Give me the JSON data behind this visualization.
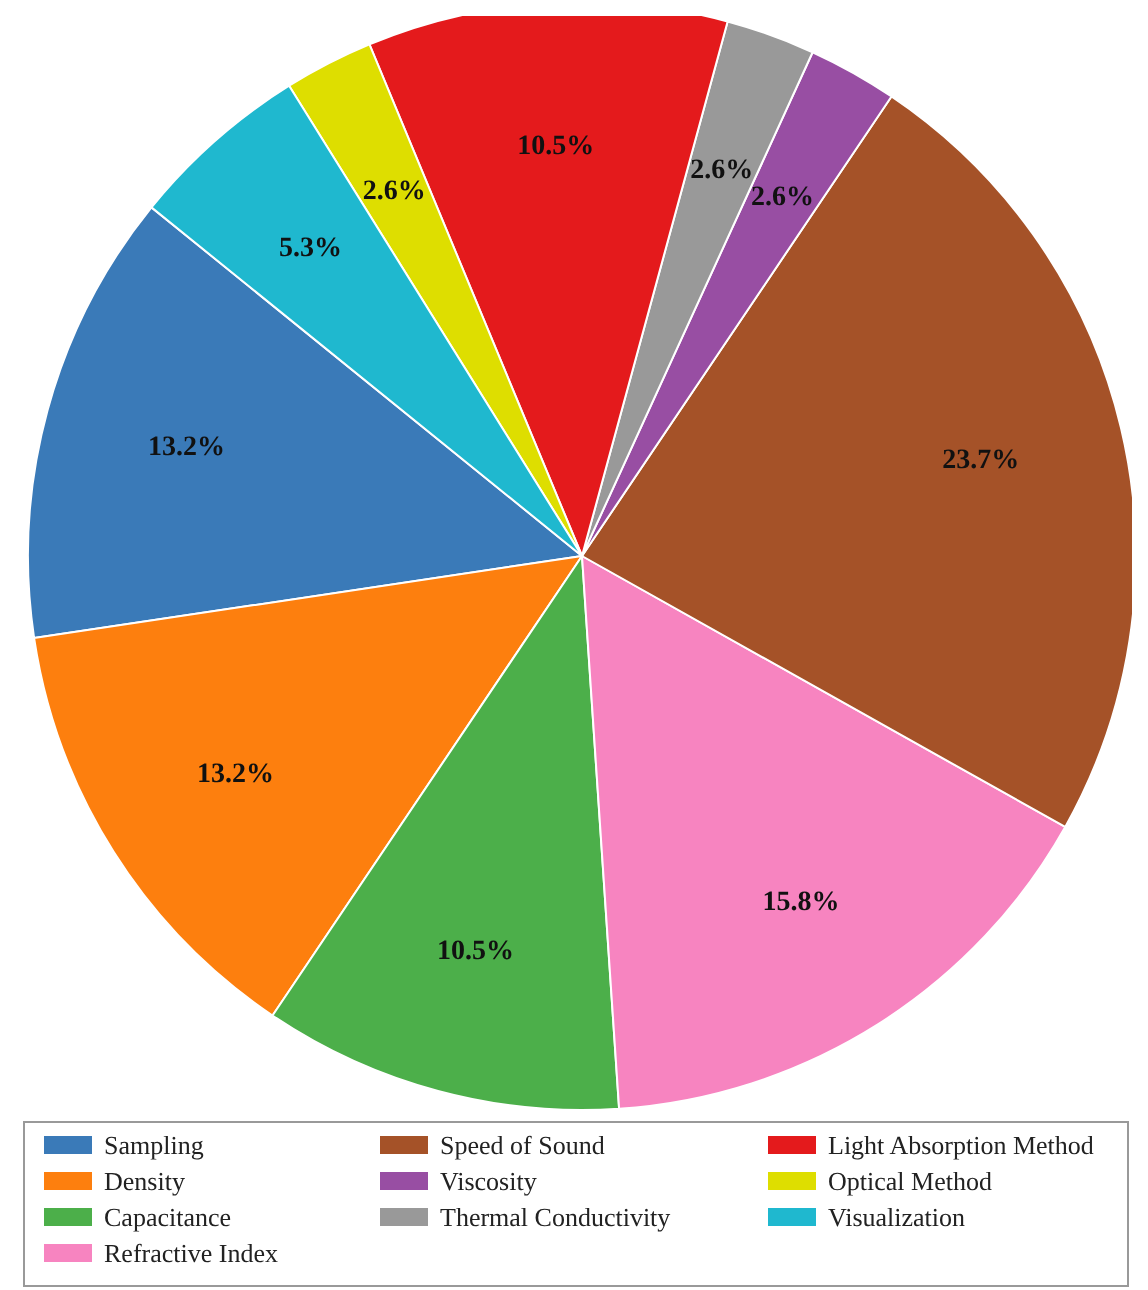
{
  "chart_data": {
    "type": "pie",
    "categories": [
      "Sampling",
      "Density",
      "Capacitance",
      "Refractive Index",
      "Speed of Sound",
      "Viscosity",
      "Thermal Conductivity",
      "Light Absorption Method",
      "Optical Method",
      "Visualization"
    ],
    "values": [
      13.2,
      13.2,
      10.5,
      15.8,
      23.7,
      2.6,
      2.6,
      10.5,
      2.6,
      5.3
    ],
    "value_labels": [
      "13.2%",
      "13.2%",
      "10.5%",
      "15.8%",
      "23.7%",
      "2.6%",
      "2.6%",
      "10.5%",
      "2.6%",
      "5.3%"
    ],
    "colors": [
      "#3a7ab8",
      "#fd7f0e",
      "#4caf4a",
      "#f784c0",
      "#a55228",
      "#984ea3",
      "#999999",
      "#e41a1c",
      "#dede00",
      "#1fb8cf"
    ],
    "legend": "bottom"
  }
}
